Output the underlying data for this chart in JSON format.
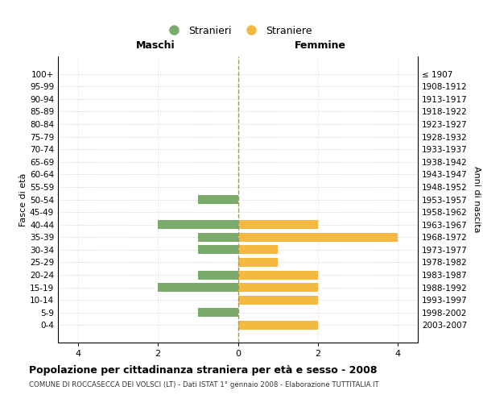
{
  "age_groups": [
    "100+",
    "95-99",
    "90-94",
    "85-89",
    "80-84",
    "75-79",
    "70-74",
    "65-69",
    "60-64",
    "55-59",
    "50-54",
    "45-49",
    "40-44",
    "35-39",
    "30-34",
    "25-29",
    "20-24",
    "15-19",
    "10-14",
    "5-9",
    "0-4"
  ],
  "birth_years": [
    "≤ 1907",
    "1908-1912",
    "1913-1917",
    "1918-1922",
    "1923-1927",
    "1928-1932",
    "1933-1937",
    "1938-1942",
    "1943-1947",
    "1948-1952",
    "1953-1957",
    "1958-1962",
    "1963-1967",
    "1968-1972",
    "1973-1977",
    "1978-1982",
    "1983-1987",
    "1988-1992",
    "1993-1997",
    "1998-2002",
    "2003-2007"
  ],
  "maschi": [
    0,
    0,
    0,
    0,
    0,
    0,
    0,
    0,
    0,
    0,
    1,
    0,
    2,
    1,
    1,
    0,
    1,
    2,
    0,
    1,
    0
  ],
  "femmine": [
    0,
    0,
    0,
    0,
    0,
    0,
    0,
    0,
    0,
    0,
    0,
    0,
    2,
    4,
    1,
    1,
    2,
    2,
    2,
    0,
    2
  ],
  "color_maschi": "#7aab6a",
  "color_femmine": "#f5b942",
  "xlim": 4.5,
  "title": "Popolazione per cittadinanza straniera per età e sesso - 2008",
  "subtitle": "COMUNE DI ROCCASECCA DEI VOLSCI (LT) - Dati ISTAT 1° gennaio 2008 - Elaborazione TUTTITALIA.IT",
  "ylabel_left": "Fasce di età",
  "ylabel_right": "Anni di nascita",
  "header_maschi": "Maschi",
  "header_femmine": "Femmine",
  "legend_maschi": "Stranieri",
  "legend_femmine": "Straniere",
  "bg_color": "#ffffff",
  "grid_color": "#cccccc",
  "vline_color": "#999966"
}
